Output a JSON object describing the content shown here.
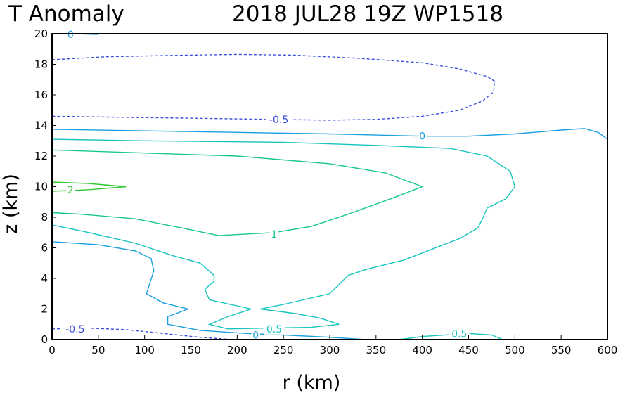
{
  "title_left": "T Anomaly",
  "title_right": "2018 JUL28 19Z   WP1518",
  "chart_data": {
    "type": "contour",
    "xlabel": "r (km)",
    "ylabel": "z (km)",
    "xlim": [
      0,
      600
    ],
    "ylim": [
      0,
      20
    ],
    "xticks": [
      0,
      50,
      100,
      150,
      200,
      250,
      300,
      350,
      400,
      450,
      500,
      550,
      600
    ],
    "yticks": [
      0,
      2,
      4,
      6,
      8,
      10,
      12,
      14,
      16,
      18,
      20
    ],
    "grid": false,
    "contours": [
      {
        "level": -0.5,
        "color": "#3a4fe0",
        "dashed": true,
        "points": [
          [
            0,
            18.3
          ],
          [
            60,
            18.5
          ],
          [
            150,
            18.6
          ],
          [
            200,
            18.65
          ],
          [
            260,
            18.6
          ],
          [
            330,
            18.4
          ],
          [
            400,
            18.1
          ],
          [
            440,
            17.7
          ],
          [
            470,
            17.2
          ],
          [
            478,
            16.9
          ],
          [
            477,
            16.2
          ],
          [
            465,
            15.6
          ],
          [
            440,
            15.0
          ],
          [
            400,
            14.6
          ],
          [
            350,
            14.4
          ],
          [
            300,
            14.35
          ],
          [
            235,
            14.4
          ],
          [
            180,
            14.45
          ],
          [
            120,
            14.5
          ],
          [
            60,
            14.55
          ],
          [
            0,
            14.6
          ]
        ],
        "labels": [
          {
            "text": "-0.5",
            "x": 245,
            "y": 14.4
          }
        ]
      },
      {
        "level": -0.5,
        "color": "#3a4fe0",
        "dashed": true,
        "points": [
          [
            0,
            0.7
          ],
          [
            40,
            0.75
          ],
          [
            80,
            0.65
          ],
          [
            120,
            0.4
          ],
          [
            160,
            0.15
          ],
          [
            195,
            0
          ]
        ],
        "labels": [
          {
            "text": "-0.5",
            "x": 25,
            "y": 0.7
          }
        ]
      },
      {
        "level": 0,
        "color": "#1aa0e0",
        "dashed": false,
        "points": [
          [
            0,
            13.75
          ],
          [
            150,
            13.6
          ],
          [
            300,
            13.45
          ],
          [
            400,
            13.3
          ],
          [
            450,
            13.3
          ],
          [
            500,
            13.45
          ],
          [
            550,
            13.7
          ],
          [
            575,
            13.8
          ],
          [
            590,
            13.55
          ],
          [
            600,
            13.1
          ]
        ],
        "labels": [
          {
            "text": "0",
            "x": 400,
            "y": 13.3
          }
        ]
      },
      {
        "level": 0,
        "color": "#1aa0e0",
        "dashed": false,
        "points": [
          [
            0,
            6.4
          ],
          [
            50,
            6.2
          ],
          [
            90,
            5.8
          ],
          [
            107,
            5.3
          ],
          [
            110,
            4.5
          ],
          [
            102,
            3.0
          ],
          [
            120,
            2.4
          ],
          [
            147,
            2.0
          ],
          [
            125,
            1.5
          ],
          [
            125,
            1.0
          ],
          [
            160,
            0.6
          ],
          [
            210,
            0.4
          ],
          [
            250,
            0.3
          ],
          [
            300,
            0.15
          ],
          [
            340,
            0
          ]
        ],
        "labels": [
          {
            "text": "0",
            "x": 220,
            "y": 0.3
          }
        ]
      },
      {
        "level": 0,
        "color": "#1aa0e0",
        "dashed": false,
        "points": [
          [
            0,
            20
          ],
          [
            25,
            20
          ],
          [
            50,
            19.95
          ]
        ],
        "labels": [
          {
            "text": "0",
            "x": 20,
            "y": 19.95
          }
        ]
      },
      {
        "level": 0.5,
        "color": "#18c4c0",
        "dashed": false,
        "points": [
          [
            0,
            13.1
          ],
          [
            100,
            13.0
          ],
          [
            250,
            12.9
          ],
          [
            350,
            12.7
          ],
          [
            430,
            12.5
          ],
          [
            470,
            12.0
          ],
          [
            495,
            11.0
          ],
          [
            500,
            10.0
          ],
          [
            490,
            9.2
          ],
          [
            470,
            8.6
          ],
          [
            465,
            7.9
          ],
          [
            460,
            7.3
          ],
          [
            440,
            6.6
          ],
          [
            410,
            5.9
          ],
          [
            380,
            5.2
          ],
          [
            340,
            4.6
          ],
          [
            320,
            4.2
          ],
          [
            300,
            3.0
          ],
          [
            250,
            2.3
          ],
          [
            225,
            2.0
          ],
          [
            263,
            1.7
          ],
          [
            290,
            1.4
          ],
          [
            310,
            1.0
          ],
          [
            280,
            0.8
          ],
          [
            230,
            0.75
          ],
          [
            190,
            0.7
          ],
          [
            170,
            1.0
          ],
          [
            190,
            1.5
          ],
          [
            215,
            2.0
          ],
          [
            170,
            2.6
          ],
          [
            165,
            3.3
          ],
          [
            175,
            3.8
          ],
          [
            175,
            4.2
          ],
          [
            160,
            5.0
          ],
          [
            130,
            5.5
          ],
          [
            90,
            6.3
          ],
          [
            40,
            7.0
          ],
          [
            0,
            7.5
          ]
        ],
        "labels": [
          {
            "text": "0.5",
            "x": 240,
            "y": 0.7
          }
        ]
      },
      {
        "level": 0.5,
        "color": "#18c4c0",
        "dashed": false,
        "points": [
          [
            375,
            0
          ],
          [
            400,
            0.2
          ],
          [
            450,
            0.4
          ],
          [
            475,
            0.3
          ],
          [
            487,
            0
          ]
        ],
        "labels": [
          {
            "text": "0.5",
            "x": 440,
            "y": 0.4
          }
        ]
      },
      {
        "level": 1,
        "color": "#15c690",
        "dashed": false,
        "points": [
          [
            0,
            12.4
          ],
          [
            100,
            12.2
          ],
          [
            200,
            12.0
          ],
          [
            300,
            11.5
          ],
          [
            360,
            10.9
          ],
          [
            400,
            10.0
          ],
          [
            370,
            9.3
          ],
          [
            320,
            8.2
          ],
          [
            280,
            7.4
          ],
          [
            240,
            7.0
          ],
          [
            180,
            6.8
          ],
          [
            140,
            7.3
          ],
          [
            90,
            7.9
          ],
          [
            30,
            8.2
          ],
          [
            0,
            8.3
          ]
        ],
        "labels": [
          {
            "text": "1",
            "x": 240,
            "y": 6.9
          }
        ]
      },
      {
        "level": 2,
        "color": "#30c830",
        "dashed": false,
        "points": [
          [
            0,
            10.3
          ],
          [
            40,
            10.2
          ],
          [
            80,
            10.0
          ],
          [
            40,
            9.8
          ],
          [
            0,
            9.7
          ]
        ],
        "labels": [
          {
            "text": "2",
            "x": 20,
            "y": 9.8
          }
        ]
      }
    ]
  }
}
